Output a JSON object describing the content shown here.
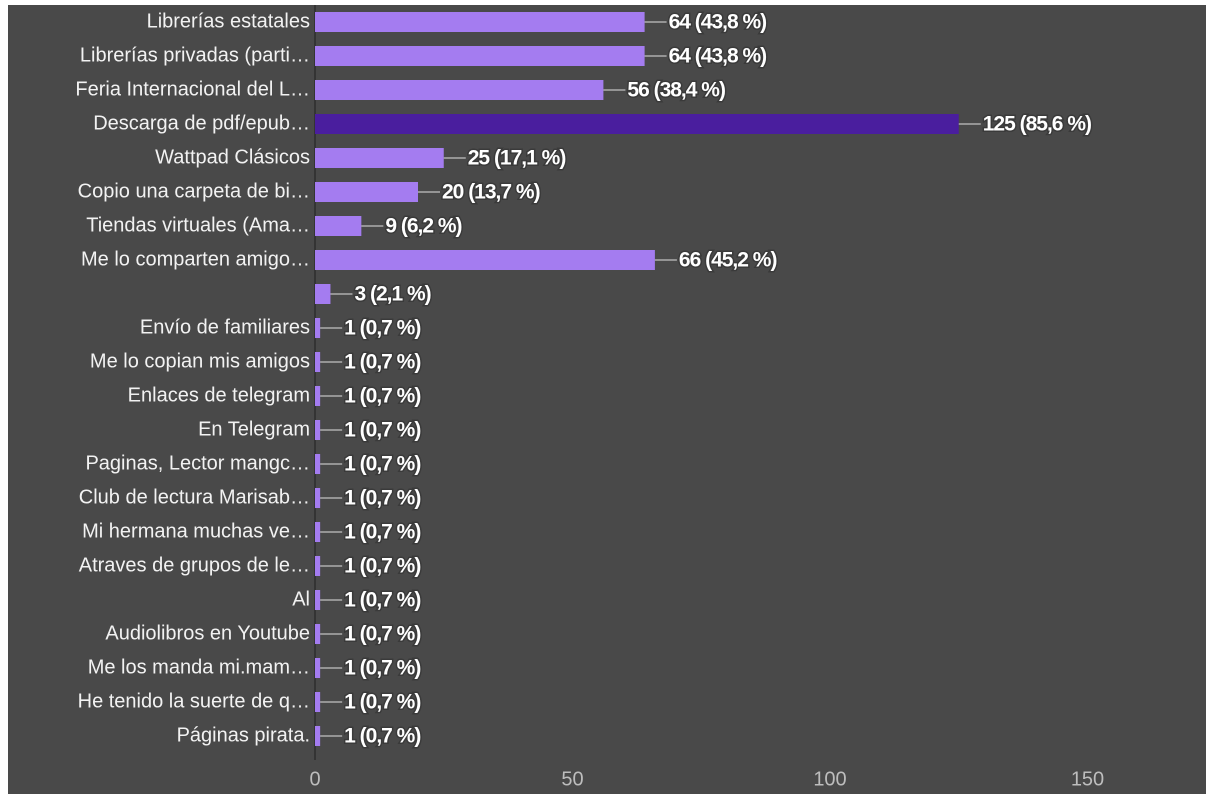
{
  "chart_data": {
    "type": "bar",
    "orientation": "horizontal",
    "categories": [
      "Librerías estatales",
      "Librerías privadas (parti…",
      "Feria Internacional del L…",
      "Descarga de pdf/epub…",
      "Wattpad Clásicos",
      "Copio una carpeta de bi…",
      "Tiendas virtuales (Ama…",
      "Me lo comparten amigo…",
      null,
      "Envío de familiares",
      "Me lo copian mis amigos",
      "Enlaces de telegram",
      "En Telegram",
      "Paginas, Lector mangc…",
      "Club de lectura Marisab…",
      "Mi hermana muchas ve…",
      "Atraves de grupos de le…",
      "Al",
      "Audiolibros en Youtube",
      "Me los manda mi.mam…",
      "He tenido la suerte de q…",
      "Páginas pirata."
    ],
    "values": [
      64,
      64,
      56,
      125,
      25,
      20,
      9,
      66,
      3,
      1,
      1,
      1,
      1,
      1,
      1,
      1,
      1,
      1,
      1,
      1,
      1,
      1
    ],
    "value_labels": [
      "64 (43,8 %)",
      "64 (43,8 %)",
      "56 (38,4 %)",
      "125 (85,6 %)",
      "25 (17,1 %)",
      "20 (13,7 %)",
      "9 (6,2 %)",
      "66 (45,2 %)",
      "3 (2,1 %)",
      "1 (0,7 %)",
      "1 (0,7 %)",
      "1 (0,7 %)",
      "1 (0,7 %)",
      "1 (0,7 %)",
      "1 (0,7 %)",
      "1 (0,7 %)",
      "1 (0,7 %)",
      "1 (0,7 %)",
      "1 (0,7 %)",
      "1 (0,7 %)",
      "1 (0,7 %)",
      "1 (0,7 %)"
    ],
    "bar_colors": [
      "#a47cf0",
      "#a47cf0",
      "#a47cf0",
      "#4a1e9e",
      "#a47cf0",
      "#a47cf0",
      "#a47cf0",
      "#a47cf0",
      "#a47cf0",
      "#a47cf0",
      "#a47cf0",
      "#a47cf0",
      "#a47cf0",
      "#a47cf0",
      "#a47cf0",
      "#a47cf0",
      "#a47cf0",
      "#a47cf0",
      "#a47cf0",
      "#a47cf0",
      "#a47cf0",
      "#a47cf0"
    ],
    "xlim": [
      0,
      170
    ],
    "xticks": [
      0,
      50,
      100,
      150
    ]
  }
}
